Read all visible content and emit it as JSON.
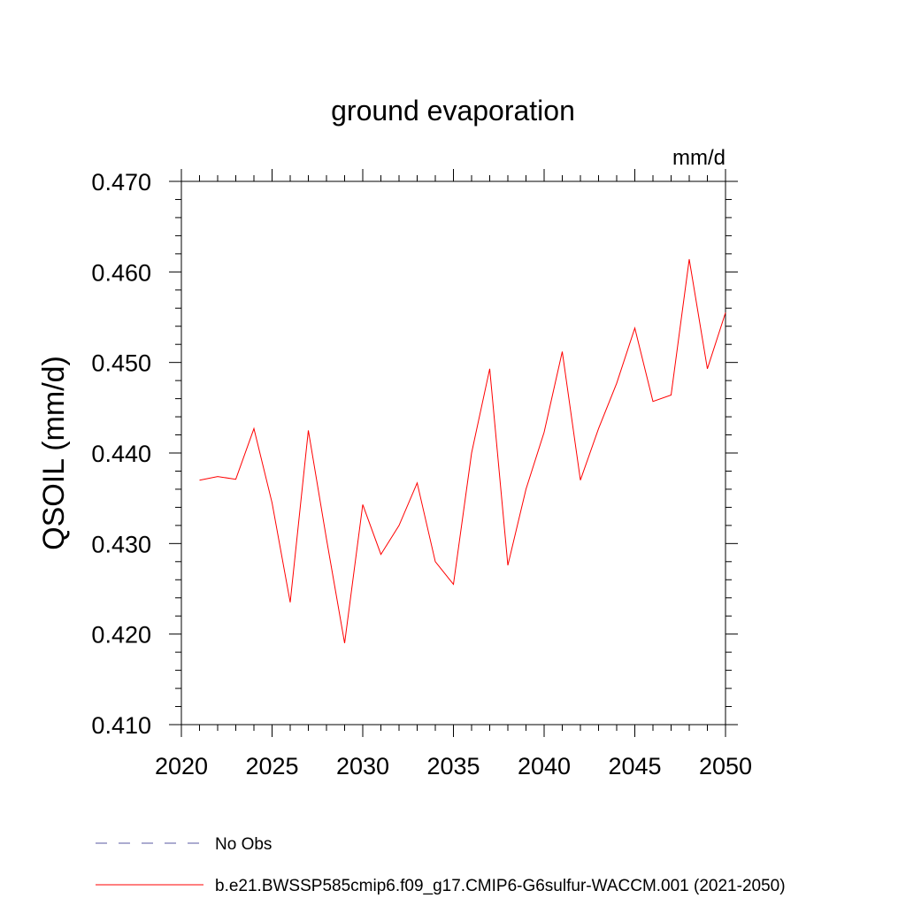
{
  "chart_data": {
    "type": "line",
    "title": "ground evaporation",
    "units": "mm/d",
    "ylabel": "QSOIL  (mm/d)",
    "xlabel": "",
    "xlim": [
      2020,
      2050
    ],
    "ylim": [
      0.41,
      0.47
    ],
    "x_ticks": [
      2020,
      2025,
      2030,
      2035,
      2040,
      2045,
      2050
    ],
    "x_tick_labels": [
      "2020",
      "2025",
      "2030",
      "2035",
      "2040",
      "2045",
      "2050"
    ],
    "y_ticks": [
      0.41,
      0.42,
      0.43,
      0.44,
      0.45,
      0.46,
      0.47
    ],
    "y_tick_labels": [
      "0.410",
      "0.420",
      "0.430",
      "0.440",
      "0.450",
      "0.460",
      "0.470"
    ],
    "grid": false,
    "legend_position": "bottom",
    "series": [
      {
        "name": "b.e21.BWSSP585cmip6.f09_g17.CMIP6-G6sulfur-WACCM.001 (2021-2050)",
        "color": "#ff0000",
        "style": "solid",
        "x": [
          2021,
          2022,
          2023,
          2024,
          2025,
          2026,
          2027,
          2028,
          2029,
          2030,
          2031,
          2032,
          2033,
          2034,
          2035,
          2036,
          2037,
          2038,
          2039,
          2040,
          2041,
          2042,
          2043,
          2044,
          2045,
          2046,
          2047,
          2048,
          2049,
          2050
        ],
        "values": [
          0.437,
          0.4374,
          0.4371,
          0.4427,
          0.4345,
          0.4235,
          0.4425,
          0.4305,
          0.419,
          0.4343,
          0.4288,
          0.432,
          0.4367,
          0.428,
          0.4255,
          0.44,
          0.4493,
          0.4276,
          0.436,
          0.4423,
          0.4512,
          0.437,
          0.4427,
          0.4477,
          0.4538,
          0.4457,
          0.4464,
          0.4614,
          0.4493,
          0.4555
        ]
      }
    ],
    "legend": [
      {
        "label": "No Obs",
        "color": "#5a5aa0",
        "style": "dashed"
      },
      {
        "label": "b.e21.BWSSP585cmip6.f09_g17.CMIP6-G6sulfur-WACCM.001 (2021-2050)",
        "color": "#ff0000",
        "style": "solid"
      }
    ]
  }
}
